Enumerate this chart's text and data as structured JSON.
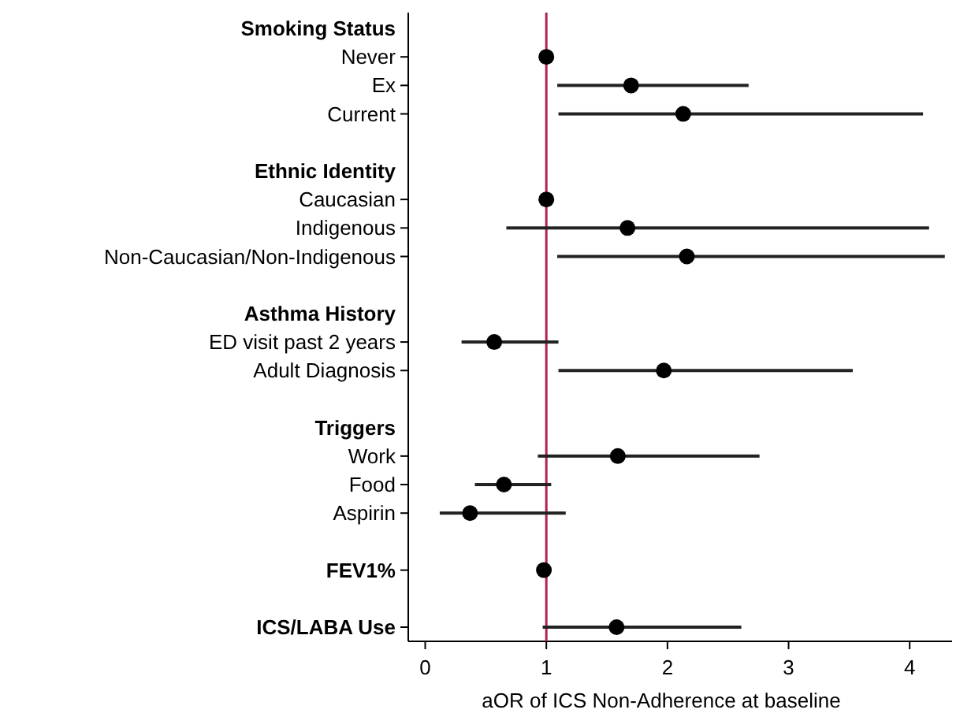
{
  "chart_data": {
    "type": "scatter",
    "orientation": "horizontal",
    "marker": "circle",
    "grid": false,
    "xlabel": "aOR of ICS Non-Adherence at baseline",
    "categories": [
      "Smoking Status",
      "Never",
      "Ex",
      "Current",
      null,
      "Ethnic Identity",
      "Caucasian",
      "Indigenous",
      "Non-Caucasian/Non-Indigenous",
      null,
      "Asthma History",
      "ED visit past 2 years",
      "Adult Diagnosis",
      null,
      "Triggers",
      "Work",
      "Food",
      "Aspirin",
      null,
      "FEV1%",
      null,
      "ICS/LABA Use"
    ],
    "series": [
      {
        "color": "#000000",
        "values": [
          null,
          1.0,
          1.7,
          2.13,
          null,
          null,
          1.0,
          1.67,
          2.16,
          null,
          null,
          0.57,
          1.97,
          null,
          null,
          1.59,
          0.65,
          0.37,
          null,
          0.98,
          null,
          1.58
        ],
        "errors": [
          null,
          null,
          [
            1.09,
            2.67
          ],
          [
            1.1,
            4.11
          ],
          null,
          null,
          null,
          [
            0.67,
            4.16
          ],
          [
            1.09,
            4.29
          ],
          null,
          null,
          [
            0.3,
            1.1
          ],
          [
            1.1,
            3.53
          ],
          null,
          null,
          [
            0.93,
            2.76
          ],
          [
            0.41,
            1.04
          ],
          [
            0.12,
            1.16
          ],
          null,
          null,
          null,
          [
            0.97,
            2.61
          ]
        ]
      }
    ],
    "xlim": [
      -0.14,
      4.35
    ],
    "xticks": [
      0,
      1,
      2,
      3,
      4
    ],
    "ref_lines": [
      {
        "axis": "x",
        "value": 1,
        "color": "#b0234e"
      }
    ]
  }
}
